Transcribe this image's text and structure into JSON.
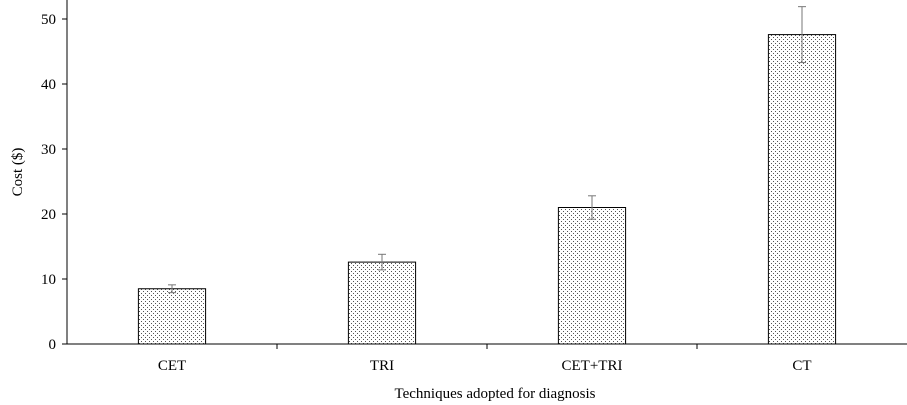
{
  "chart_data": {
    "type": "bar",
    "title": "",
    "xlabel": "Techniques adopted for diagnosis",
    "ylabel": "Cost ($)",
    "categories": [
      "CET",
      "TRI",
      "CET+TRI",
      "CT"
    ],
    "values": [
      8.5,
      12.6,
      21.0,
      47.6
    ],
    "error": [
      0.6,
      1.2,
      1.8,
      4.3
    ],
    "ylim": [
      0,
      50
    ],
    "yticks": [
      "0",
      "10",
      "20",
      "30",
      "40",
      "50"
    ],
    "grid": false,
    "legend": "none",
    "bar_fill": "dotted",
    "colors": {
      "bar_outline": "#000000",
      "dots": "#555555",
      "error_bar": "#777777"
    }
  }
}
